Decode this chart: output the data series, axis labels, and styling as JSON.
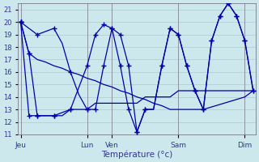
{
  "title": "",
  "xlabel": "Température (°c)",
  "ylabel": "",
  "background_color": "#cce8ec",
  "grid_color": "#aacccc",
  "line_color": "#0000aa",
  "day_labels": [
    "Jeu",
    "Lun",
    "Ven",
    "Sam",
    "Dim"
  ],
  "day_x": [
    0,
    8,
    11,
    19,
    27
  ],
  "ylim": [
    11,
    21.5
  ],
  "yticks": [
    11,
    12,
    13,
    14,
    15,
    16,
    17,
    18,
    19,
    20,
    21
  ],
  "xlim": [
    -0.3,
    28.3
  ],
  "series": [
    {
      "points": [
        [
          0,
          20.0
        ],
        [
          1,
          17.5
        ],
        [
          2,
          17.0
        ],
        [
          3,
          16.8
        ],
        [
          4,
          16.5
        ],
        [
          5,
          16.3
        ],
        [
          6,
          16.0
        ],
        [
          7,
          15.8
        ],
        [
          8,
          15.5
        ],
        [
          9,
          15.3
        ],
        [
          10,
          15.0
        ],
        [
          11,
          14.8
        ],
        [
          12,
          14.5
        ],
        [
          13,
          14.3
        ],
        [
          14,
          14.0
        ],
        [
          15,
          13.8
        ],
        [
          16,
          13.5
        ],
        [
          17,
          13.3
        ],
        [
          18,
          13.0
        ],
        [
          19,
          13.0
        ],
        [
          20,
          13.0
        ],
        [
          21,
          13.0
        ],
        [
          22,
          13.0
        ],
        [
          23,
          13.2
        ],
        [
          24,
          13.4
        ],
        [
          25,
          13.6
        ],
        [
          26,
          13.8
        ],
        [
          27,
          14.0
        ],
        [
          28,
          14.5
        ]
      ],
      "marked": [
        0,
        1
      ]
    },
    {
      "points": [
        [
          0,
          20.0
        ],
        [
          1,
          12.5
        ],
        [
          2,
          12.5
        ],
        [
          3,
          12.5
        ],
        [
          4,
          12.5
        ],
        [
          5,
          12.5
        ],
        [
          6,
          13.0
        ],
        [
          7,
          13.0
        ],
        [
          8,
          13.0
        ],
        [
          9,
          13.5
        ],
        [
          10,
          13.5
        ],
        [
          11,
          13.5
        ],
        [
          12,
          13.5
        ],
        [
          13,
          13.5
        ],
        [
          14,
          13.5
        ],
        [
          15,
          14.0
        ],
        [
          16,
          14.0
        ],
        [
          17,
          14.0
        ],
        [
          18,
          14.0
        ],
        [
          19,
          14.5
        ],
        [
          20,
          14.5
        ],
        [
          21,
          14.5
        ],
        [
          22,
          14.5
        ],
        [
          23,
          14.5
        ],
        [
          24,
          14.5
        ],
        [
          25,
          14.5
        ],
        [
          26,
          14.5
        ],
        [
          27,
          14.5
        ],
        [
          28,
          14.5
        ]
      ],
      "marked": [
        0,
        1,
        2,
        4,
        6,
        8
      ]
    },
    {
      "points": [
        [
          0,
          20.0
        ],
        [
          2,
          19.0
        ],
        [
          4,
          19.5
        ],
        [
          5,
          18.3
        ],
        [
          6,
          16.0
        ],
        [
          7,
          14.2
        ],
        [
          8,
          13.0
        ],
        [
          9,
          13.0
        ],
        [
          10,
          16.5
        ],
        [
          11,
          19.5
        ],
        [
          12,
          19.0
        ],
        [
          13,
          16.5
        ],
        [
          14,
          11.2
        ],
        [
          15,
          13.0
        ],
        [
          16,
          13.0
        ],
        [
          17,
          16.5
        ],
        [
          18,
          19.5
        ],
        [
          19,
          19.0
        ],
        [
          20,
          16.5
        ],
        [
          21,
          14.5
        ],
        [
          22,
          13.0
        ],
        [
          23,
          18.5
        ],
        [
          24,
          20.5
        ],
        [
          25,
          21.5
        ],
        [
          26,
          20.5
        ],
        [
          27,
          18.5
        ],
        [
          28,
          14.5
        ]
      ],
      "marked": [
        0,
        2,
        4,
        6,
        8,
        9,
        10,
        11,
        12,
        13,
        14,
        15,
        17,
        18,
        19,
        20,
        21,
        22,
        23,
        24,
        25,
        26,
        27,
        28
      ]
    },
    {
      "points": [
        [
          0,
          20.0
        ],
        [
          1,
          17.5
        ],
        [
          2,
          12.5
        ],
        [
          4,
          12.5
        ],
        [
          6,
          13.0
        ],
        [
          8,
          16.5
        ],
        [
          9,
          19.0
        ],
        [
          10,
          19.8
        ],
        [
          11,
          19.5
        ],
        [
          12,
          16.5
        ],
        [
          13,
          13.0
        ],
        [
          14,
          11.2
        ],
        [
          15,
          13.0
        ],
        [
          16,
          13.0
        ],
        [
          17,
          16.5
        ],
        [
          18,
          19.5
        ],
        [
          19,
          19.0
        ],
        [
          20,
          16.5
        ],
        [
          21,
          14.5
        ],
        [
          22,
          13.0
        ],
        [
          23,
          18.5
        ],
        [
          24,
          20.5
        ],
        [
          25,
          21.5
        ],
        [
          26,
          20.5
        ],
        [
          27,
          18.5
        ],
        [
          28,
          14.5
        ]
      ],
      "marked": [
        0,
        1,
        2,
        4,
        6,
        8,
        9,
        10,
        11,
        12,
        13,
        14,
        15,
        17,
        18,
        19,
        20,
        21,
        22,
        23,
        24,
        25,
        26,
        27,
        28
      ]
    }
  ]
}
